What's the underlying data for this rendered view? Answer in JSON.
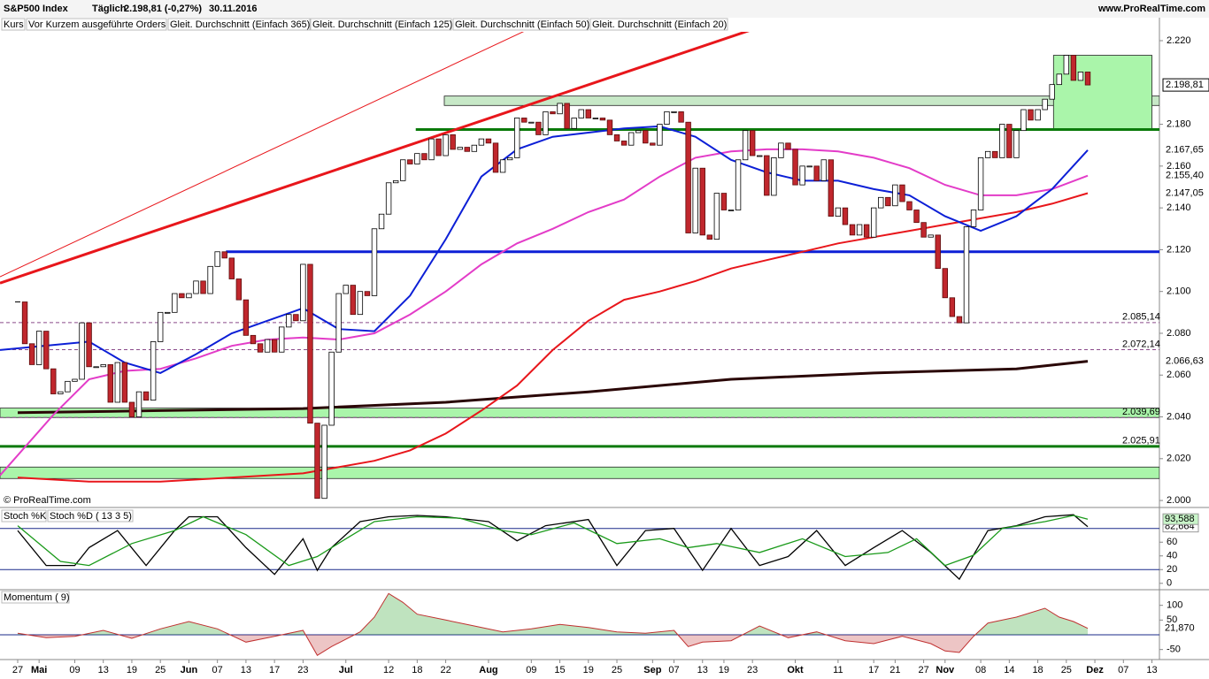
{
  "header": {
    "title": "S&P500 Index",
    "period": "Täglich",
    "quote": "2.198,81 (-0,27%)",
    "date": "30.11.2016",
    "site": "www.ProRealTime.com",
    "copyright": "© ProRealTime.com",
    "legend": [
      "Kurs",
      "Vor Kurzem ausgeführte Orders"
    ]
  },
  "chart_data": [
    {
      "type": "candlestick",
      "xlim": [
        -2.48,
        160.05
      ],
      "ylim": [
        1997.5,
        2231
      ],
      "xticks": [
        {
          "value": 0,
          "label": "27"
        },
        {
          "value": 3,
          "label": "Mai"
        },
        {
          "value": 8,
          "label": "09"
        },
        {
          "value": 12,
          "label": "13"
        },
        {
          "value": 16,
          "label": "19"
        },
        {
          "value": 20,
          "label": "25"
        },
        {
          "value": 24,
          "label": "Jun"
        },
        {
          "value": 28,
          "label": "07"
        },
        {
          "value": 32,
          "label": "13"
        },
        {
          "value": 36,
          "label": "17"
        },
        {
          "value": 40,
          "label": "23"
        },
        {
          "value": 46,
          "label": "Jul"
        },
        {
          "value": 52,
          "label": "12"
        },
        {
          "value": 56,
          "label": "18"
        },
        {
          "value": 60,
          "label": "22"
        },
        {
          "value": 66,
          "label": "Aug"
        },
        {
          "value": 72,
          "label": "09"
        },
        {
          "value": 76,
          "label": "15"
        },
        {
          "value": 80,
          "label": "19"
        },
        {
          "value": 84,
          "label": "25"
        },
        {
          "value": 89,
          "label": "Sep"
        },
        {
          "value": 92,
          "label": "07"
        },
        {
          "value": 96,
          "label": "13"
        },
        {
          "value": 99,
          "label": "19"
        },
        {
          "value": 103,
          "label": "23"
        },
        {
          "value": 109,
          "label": "Okt"
        },
        {
          "value": 115,
          "label": "11"
        },
        {
          "value": 120,
          "label": "17"
        },
        {
          "value": 123,
          "label": "21"
        },
        {
          "value": 127,
          "label": "27"
        },
        {
          "value": 130,
          "label": "Nov"
        },
        {
          "value": 135,
          "label": "08"
        },
        {
          "value": 139,
          "label": "14"
        },
        {
          "value": 143,
          "label": "18"
        },
        {
          "value": 147,
          "label": "25"
        },
        {
          "value": 151,
          "label": "Dez"
        },
        {
          "value": 155,
          "label": "07"
        },
        {
          "value": 159,
          "label": "13"
        }
      ],
      "yticks": [
        {
          "value": 2220,
          "label": "2.220"
        },
        {
          "value": 2180,
          "label": "2.180"
        },
        {
          "value": 2160,
          "label": "2.160"
        },
        {
          "value": 2140,
          "label": "2.140"
        },
        {
          "value": 2120,
          "label": "2.120"
        },
        {
          "value": 2100,
          "label": "2.100"
        },
        {
          "value": 2080,
          "label": "2.080"
        },
        {
          "value": 2060,
          "label": "2.060"
        },
        {
          "value": 2040,
          "label": "2.040"
        },
        {
          "value": 2020,
          "label": "2.020"
        },
        {
          "value": 2000,
          "label": "2.000"
        }
      ],
      "close": [
        2095,
        2075,
        2065,
        2081,
        2063,
        2051,
        2052,
        2057,
        2058,
        2085,
        2064,
        2064,
        2065,
        2047,
        2066,
        2047,
        2040,
        2052,
        2048,
        2076,
        2090,
        2090,
        2099,
        2097,
        2099,
        2105,
        2099,
        2112,
        2119,
        2116,
        2106,
        2096,
        2079,
        2075,
        2071,
        2077,
        2071,
        2083,
        2089,
        2086,
        2113,
        2037,
        2001,
        2036,
        2071,
        2099,
        2103,
        2089,
        2100,
        2098,
        2130,
        2137,
        2152,
        2153,
        2163,
        2161,
        2166,
        2163,
        2173,
        2165,
        2175,
        2168,
        2169,
        2167,
        2170,
        2173,
        2171,
        2157,
        2163,
        2164,
        2183,
        2181,
        2181,
        2175,
        2186,
        2185,
        2190,
        2178,
        2183,
        2187,
        2183,
        2183,
        2182,
        2175,
        2172,
        2170,
        2176,
        2177,
        2171,
        2170,
        2180,
        2186,
        2186,
        2181,
        2128,
        2159,
        2127,
        2125,
        2147,
        2139,
        2139,
        2163,
        2177,
        2165,
        2165,
        2146,
        2164,
        2171,
        2168,
        2151,
        2160,
        2160,
        2153,
        2163,
        2136,
        2140,
        2132,
        2127,
        2132,
        2126,
        2140,
        2145,
        2141,
        2151,
        2143,
        2139,
        2133,
        2126,
        2127,
        2111,
        2097,
        2088,
        2085,
        2131,
        2139,
        2164,
        2167,
        2164,
        2180,
        2164,
        2177,
        2187,
        2182,
        2187,
        2192,
        2199,
        2204,
        2213,
        2201,
        2205,
        2198.81
      ],
      "series": [
        {
          "name": "Gleit. Durchschnitt (Einfach 365)",
          "color": "#2a0606",
          "width": 3,
          "x": [
            0,
            20,
            40,
            60,
            80,
            100,
            120,
            140,
            150
          ],
          "values": [
            2042,
            2043,
            2044,
            2047,
            2052,
            2058,
            2061,
            2063,
            2066.63
          ]
        },
        {
          "name": "Gleit. Durchschnitt (Einfach 125)",
          "color": "#e8161b",
          "width": 2,
          "x": [
            0,
            10,
            20,
            30,
            40,
            50,
            55,
            60,
            65,
            70,
            75,
            80,
            85,
            90,
            95,
            100,
            105,
            110,
            115,
            120,
            125,
            130,
            135,
            140,
            145,
            150
          ],
          "values": [
            2011,
            2009,
            2009,
            2011,
            2013,
            2019,
            2024,
            2032,
            2043,
            2055,
            2072,
            2086,
            2096,
            2100,
            2105,
            2111,
            2115,
            2119,
            2123,
            2126,
            2129,
            2132,
            2135,
            2138,
            2142,
            2147.05
          ]
        },
        {
          "name": "Gleit. Durchschnitt (Einfach 50)",
          "color": "#e33cc8",
          "width": 2,
          "x": [
            -2.48,
            5,
            10,
            15,
            20,
            25,
            30,
            35,
            40,
            45,
            50,
            55,
            60,
            65,
            70,
            75,
            80,
            85,
            90,
            95,
            100,
            105,
            110,
            115,
            120,
            125,
            130,
            135,
            140,
            145,
            150
          ],
          "values": [
            2012,
            2041,
            2058,
            2062,
            2063,
            2068,
            2074,
            2077,
            2078,
            2077,
            2080,
            2089,
            2100,
            2113,
            2123,
            2130,
            2138,
            2144,
            2155,
            2164,
            2167,
            2168,
            2168,
            2167,
            2164,
            2159,
            2151,
            2146,
            2146,
            2149,
            2155.4
          ]
        },
        {
          "name": "Gleit. Durchschnitt (Einfach 20)",
          "color": "#0c1fd6",
          "width": 2,
          "x": [
            -2.48,
            10,
            15,
            20,
            25,
            30,
            35,
            40,
            45,
            50,
            55,
            60,
            65,
            70,
            75,
            80,
            85,
            90,
            95,
            100,
            105,
            110,
            115,
            120,
            125,
            130,
            135,
            140,
            145,
            150
          ],
          "values": [
            2072,
            2076,
            2066,
            2061,
            2070,
            2080,
            2086,
            2092,
            2082,
            2081,
            2098,
            2125,
            2155,
            2168,
            2174,
            2176,
            2178,
            2179,
            2174,
            2163,
            2157,
            2153,
            2153,
            2149,
            2146,
            2136,
            2129,
            2136,
            2149,
            2167.65
          ]
        }
      ],
      "trendlines": [
        {
          "color": "#e8161b",
          "width": 3,
          "x": [
            -2.48,
            108.6
          ],
          "values": [
            2104,
            2231.8
          ]
        },
        {
          "color": "#e8161b",
          "width": 1,
          "x": [
            -2.48,
            75.7
          ],
          "values": [
            2107,
            2232
          ]
        }
      ],
      "zones": [
        {
          "low": 2189,
          "high": 2193.5,
          "from": 59.8,
          "to": 160.05,
          "color": "#c7e8c7"
        },
        {
          "low": 2177.5,
          "high": 2213,
          "from": 145.2,
          "to": 159,
          "color": "#aaf5aa"
        },
        {
          "low": 2039.7,
          "high": 2044.2,
          "from": -2.48,
          "to": 160.05,
          "color": "#aaf5aa"
        },
        {
          "low": 2010.5,
          "high": 2016,
          "from": -2.48,
          "to": 160.05,
          "color": "#aaf5aa"
        }
      ],
      "levels": [
        {
          "value": 2119,
          "from": 29.2,
          "color": "#0c1fd6",
          "width": 3
        },
        {
          "value": 2177.5,
          "from": 55.8,
          "color": "#0a7a0a",
          "width": 3
        },
        {
          "value": 2025.91,
          "label": "2.025,91",
          "from": -2.48,
          "color": "#0a7a0a",
          "width": 3
        },
        {
          "value": 2085.14,
          "label": "2.085,14",
          "from": -2.48,
          "color": "#8a4a8a",
          "width": 1,
          "dash": true
        },
        {
          "value": 2072.14,
          "label": "2.072,14",
          "from": -2.48,
          "color": "#8a4a8a",
          "width": 1,
          "dash": true
        },
        {
          "value": 2039.69,
          "label": "2.039,69",
          "from": -2.48,
          "color": "#8a4a8a",
          "width": 1,
          "dash": true
        }
      ],
      "price_labels": [
        {
          "value": 2198.81,
          "label": "2.198,81",
          "color": "#000000",
          "box": true
        },
        {
          "value": 2167.65,
          "label": "2.167,65",
          "color": "#0c1fd6"
        },
        {
          "value": 2155.4,
          "label": "2.155,40",
          "color": "#e33cc8"
        },
        {
          "value": 2147.05,
          "label": "2.147,05",
          "color": "#e8161b"
        },
        {
          "value": 2066.63,
          "label": "2.066,63",
          "color": "#2a0606"
        }
      ]
    },
    {
      "type": "line",
      "ylim": [
        -8,
        108
      ],
      "yticks": [
        60,
        40,
        20,
        0
      ],
      "levels": [
        80,
        20
      ],
      "series": [
        {
          "name": "Stoch %K",
          "color": "#000000",
          "x": [
            0,
            4,
            8,
            10,
            14,
            18,
            22,
            24,
            28,
            32,
            36,
            40,
            42,
            44,
            48,
            52,
            56,
            60,
            66,
            70,
            74,
            80,
            84,
            88,
            92,
            96,
            100,
            104,
            108,
            112,
            116,
            120,
            124,
            128,
            132,
            136,
            140,
            144,
            148,
            150
          ],
          "values": [
            77,
            26,
            26,
            52,
            77,
            26,
            77,
            97,
            97,
            52,
            13,
            65,
            19,
            52,
            90,
            97,
            99,
            97,
            90,
            62,
            84,
            93,
            26,
            77,
            80,
            19,
            80,
            26,
            39,
            77,
            26,
            52,
            77,
            45,
            6,
            77,
            84,
            97,
            100,
            82.664
          ],
          "value_label": "82,664"
        },
        {
          "name": "Stoch %D ( 13 3 5)",
          "color": "#1a9a1a",
          "x": [
            0,
            6,
            10,
            16,
            22,
            26,
            32,
            38,
            42,
            46,
            50,
            56,
            62,
            68,
            72,
            78,
            84,
            90,
            94,
            98,
            104,
            110,
            116,
            122,
            126,
            130,
            134,
            138,
            144,
            148,
            150
          ],
          "values": [
            84,
            32,
            26,
            58,
            77,
            97,
            71,
            26,
            39,
            65,
            90,
            97,
            95,
            77,
            71,
            88,
            58,
            65,
            52,
            58,
            45,
            65,
            39,
            45,
            65,
            26,
            41,
            80,
            90,
            99,
            93.588
          ],
          "value_label": "93,588"
        }
      ]
    },
    {
      "type": "area",
      "ylim": [
        -81,
        150
      ],
      "yticks": [
        100,
        50,
        -50
      ],
      "series": [
        {
          "name": "Momentum ( 9)",
          "color": "#1a9a1a",
          "negative_color": "#c03030",
          "x": [
            0,
            4,
            8,
            12,
            16,
            20,
            24,
            28,
            32,
            36,
            40,
            42,
            44,
            48,
            50,
            52,
            54,
            56,
            60,
            64,
            68,
            72,
            76,
            80,
            84,
            88,
            92,
            94,
            96,
            100,
            104,
            108,
            112,
            116,
            120,
            124,
            128,
            130,
            132,
            134,
            136,
            140,
            144,
            146,
            148,
            150
          ],
          "values": [
            5,
            -10,
            -5,
            15,
            -12,
            20,
            45,
            20,
            -25,
            -5,
            15,
            -70,
            -40,
            10,
            60,
            140,
            110,
            70,
            50,
            30,
            10,
            20,
            35,
            25,
            10,
            5,
            15,
            -40,
            -25,
            -20,
            30,
            -10,
            10,
            -20,
            -30,
            -5,
            -30,
            -55,
            -60,
            -5,
            40,
            60,
            90,
            60,
            45,
            21.87
          ],
          "value_label": "21,870"
        }
      ]
    }
  ]
}
